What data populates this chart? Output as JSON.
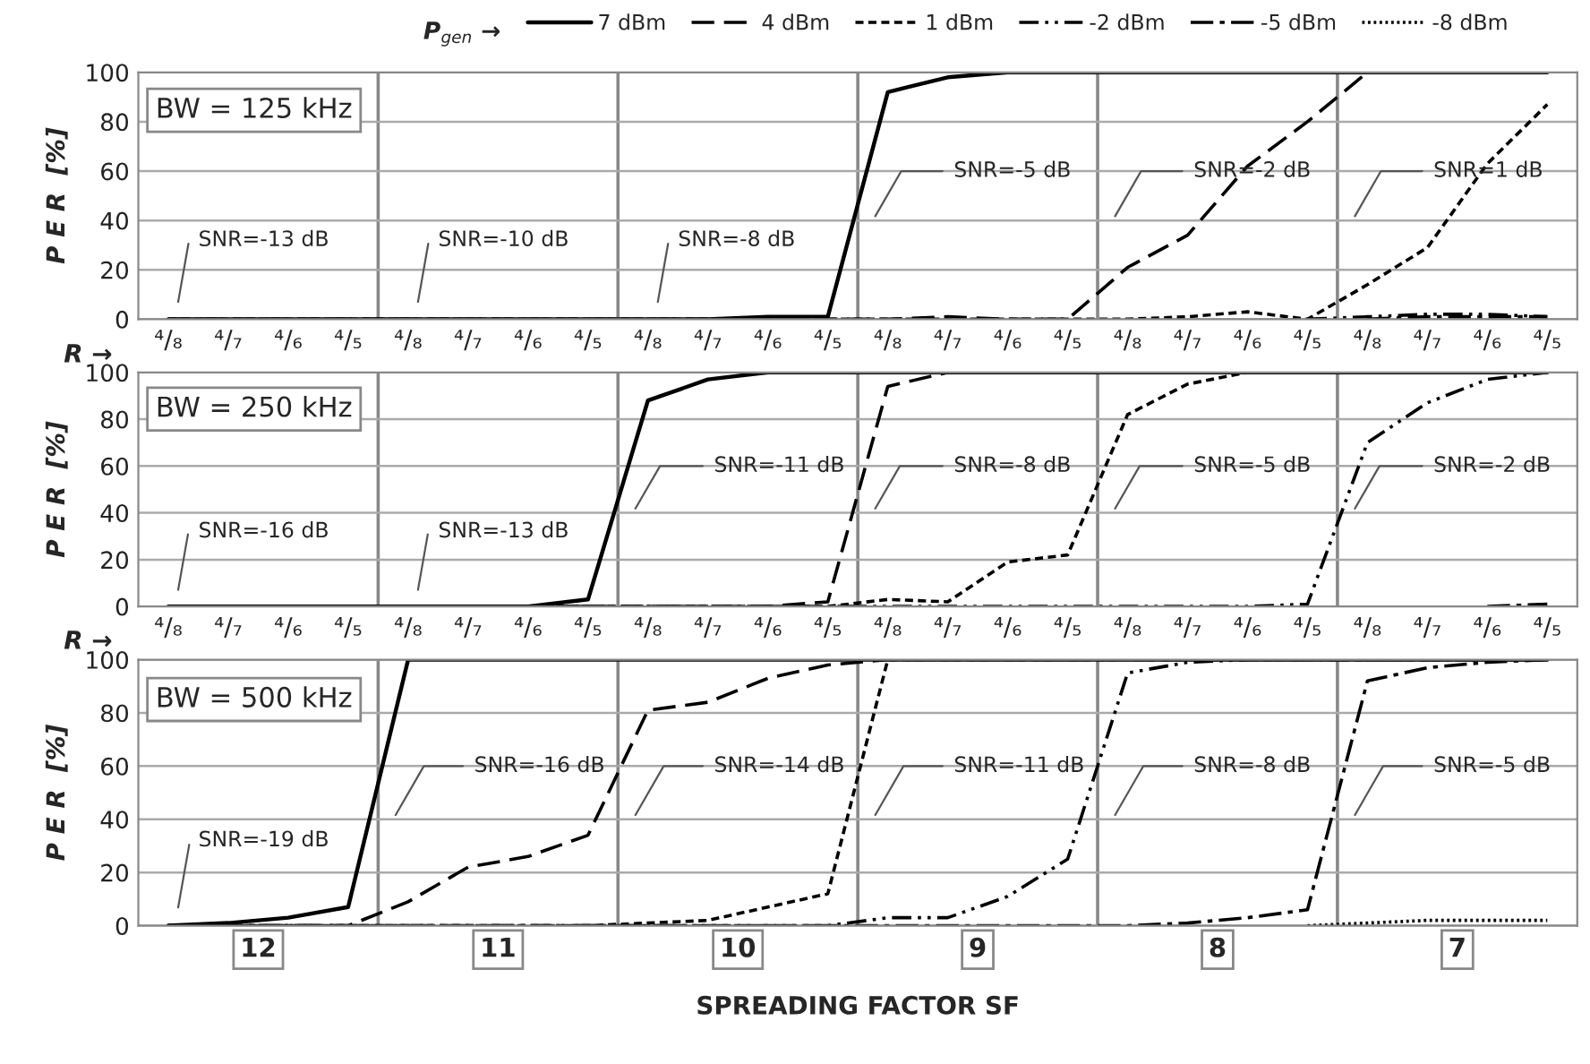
{
  "chart_data": [
    {
      "type": "line",
      "title": "BW = 125 kHz",
      "ylabel": "P E R  [%]",
      "xlabel": "R →",
      "legend_title": "P$_{gen}$ →",
      "legend": "top",
      "grid": "y",
      "marker": "none",
      "ylim": [
        0,
        100
      ],
      "yticks": [
        0,
        20,
        40,
        60,
        80,
        100
      ],
      "categories": [
        "⁴/₈",
        "⁴/₇",
        "⁴/₆",
        "⁴/₅",
        "⁴/₈",
        "⁴/₇",
        "⁴/₆",
        "⁴/₅",
        "⁴/₈",
        "⁴/₇",
        "⁴/₆",
        "⁴/₅",
        "⁴/₈",
        "⁴/₇",
        "⁴/₆",
        "⁴/₅",
        "⁴/₈",
        "⁴/₇",
        "⁴/₆",
        "⁴/₅",
        "⁴/₈",
        "⁴/₇",
        "⁴/₆",
        "⁴/₅"
      ],
      "annotations": [
        "SNR=-13 dB",
        "SNR=-10 dB",
        "SNR=-8 dB",
        "SNR=-5 dB",
        "SNR=-2 dB",
        "SNR=1 dB"
      ],
      "series": [
        {
          "name": "7 dBm",
          "color": "#000000",
          "line_style": "solid",
          "values": [
            0,
            0,
            0,
            0,
            0,
            0,
            0,
            0,
            0,
            0,
            1,
            1,
            92,
            98,
            100,
            100,
            100,
            100,
            100,
            100,
            100,
            100,
            100,
            100
          ]
        },
        {
          "name": "4 dBm",
          "color": "#000000",
          "line_style": "dashed",
          "values": [
            0,
            0,
            0,
            0,
            0,
            0,
            0,
            0,
            0,
            0,
            0,
            0,
            0,
            1,
            0,
            0,
            21,
            34,
            62,
            80,
            100,
            100,
            100,
            100
          ]
        },
        {
          "name": "1 dBm",
          "color": "#000000",
          "line_style": "shortdash",
          "values": [
            0,
            0,
            0,
            0,
            0,
            0,
            0,
            0,
            0,
            0,
            0,
            0,
            0,
            0,
            0,
            0,
            0,
            1,
            3,
            0,
            14,
            29,
            63,
            87
          ]
        },
        {
          "name": "-2 dBm",
          "color": "#000000",
          "line_style": "dashdotdot",
          "values": [
            null,
            null,
            null,
            null,
            null,
            null,
            null,
            null,
            null,
            null,
            null,
            null,
            null,
            null,
            null,
            null,
            null,
            null,
            null,
            0,
            1,
            2,
            2,
            1
          ]
        },
        {
          "name": "-5 dBm",
          "color": "#000000",
          "line_style": "dashdot",
          "values": [
            null,
            null,
            null,
            null,
            null,
            null,
            null,
            null,
            null,
            null,
            null,
            null,
            null,
            null,
            null,
            null,
            null,
            null,
            null,
            null,
            0,
            1,
            1,
            1
          ]
        },
        {
          "name": "-8 dBm",
          "color": "#000000",
          "line_style": "dotted",
          "values": [
            null,
            null,
            null,
            null,
            null,
            null,
            null,
            null,
            null,
            null,
            null,
            null,
            null,
            null,
            null,
            null,
            null,
            null,
            null,
            null,
            null,
            null,
            null,
            null
          ]
        }
      ]
    },
    {
      "type": "line",
      "title": "BW = 250 kHz",
      "ylabel": "P E R  [%]",
      "xlabel": "R →",
      "grid": "y",
      "marker": "none",
      "ylim": [
        0,
        100
      ],
      "yticks": [
        0,
        20,
        40,
        60,
        80,
        100
      ],
      "categories": [
        "⁴/₈",
        "⁴/₇",
        "⁴/₆",
        "⁴/₅",
        "⁴/₈",
        "⁴/₇",
        "⁴/₆",
        "⁴/₅",
        "⁴/₈",
        "⁴/₇",
        "⁴/₆",
        "⁴/₅",
        "⁴/₈",
        "⁴/₇",
        "⁴/₆",
        "⁴/₅",
        "⁴/₈",
        "⁴/₇",
        "⁴/₆",
        "⁴/₅",
        "⁴/₈",
        "⁴/₇",
        "⁴/₆",
        "⁴/₅"
      ],
      "annotations": [
        "SNR=-16 dB",
        "SNR=-13 dB",
        "SNR=-11 dB",
        "SNR=-8 dB",
        "SNR=-5 dB",
        "SNR=-2 dB"
      ],
      "series": [
        {
          "color": "#000000",
          "line_style": "solid",
          "values": [
            0,
            0,
            0,
            0,
            0,
            0,
            0,
            3,
            88,
            97,
            100,
            100,
            100,
            100,
            100,
            100,
            100,
            100,
            100,
            100,
            100,
            100,
            100,
            100
          ]
        },
        {
          "color": "#000000",
          "line_style": "dashed",
          "values": [
            0,
            0,
            0,
            0,
            0,
            0,
            0,
            0,
            0,
            0,
            0,
            2,
            94,
            100,
            100,
            100,
            100,
            100,
            100,
            100,
            100,
            100,
            100,
            100
          ]
        },
        {
          "color": "#000000",
          "line_style": "shortdash",
          "values": [
            0,
            0,
            0,
            0,
            0,
            0,
            0,
            0,
            0,
            0,
            0,
            0,
            3,
            2,
            19,
            22,
            82,
            95,
            100,
            100,
            100,
            100,
            100,
            100
          ]
        },
        {
          "color": "#000000",
          "line_style": "dashdotdot",
          "values": [
            0,
            0,
            0,
            0,
            0,
            0,
            0,
            0,
            0,
            0,
            0,
            0,
            0,
            0,
            0,
            0,
            0,
            0,
            0,
            1,
            70,
            87,
            97,
            100
          ]
        },
        {
          "color": "#000000",
          "line_style": "dashdot",
          "values": [
            null,
            null,
            null,
            null,
            null,
            null,
            null,
            null,
            null,
            null,
            null,
            null,
            null,
            null,
            null,
            null,
            null,
            null,
            null,
            null,
            null,
            null,
            0,
            1
          ]
        },
        {
          "color": "#000000",
          "line_style": "dotted",
          "values": [
            null,
            null,
            null,
            null,
            null,
            null,
            null,
            null,
            null,
            null,
            null,
            null,
            null,
            null,
            null,
            null,
            null,
            null,
            null,
            null,
            null,
            null,
            null,
            null
          ]
        }
      ]
    },
    {
      "type": "line",
      "title": "BW = 500 kHz",
      "ylabel": "P E R  [%]",
      "xlabel": "SPREADING FACTOR SF",
      "grid": "y",
      "marker": "none",
      "ylim": [
        0,
        100
      ],
      "yticks": [
        0,
        20,
        40,
        60,
        80,
        100
      ],
      "categories": [
        null,
        null,
        null,
        null,
        null,
        null,
        null,
        null,
        null,
        null,
        null,
        null,
        null,
        null,
        null,
        null,
        null,
        null,
        null,
        null,
        null,
        null,
        null,
        null
      ],
      "annotations": [
        "SNR=-19 dB",
        "SNR=-16 dB",
        "SNR=-14 dB",
        "SNR=-11 dB",
        "SNR=-8 dB",
        "SNR=-5 dB",
        "12",
        "11",
        "10",
        "9",
        "8",
        "7"
      ],
      "series": [
        {
          "color": "#000000",
          "line_style": "solid",
          "values": [
            0,
            1,
            3,
            7,
            100,
            100,
            100,
            100,
            100,
            100,
            100,
            100,
            100,
            100,
            100,
            100,
            100,
            100,
            100,
            100,
            100,
            100,
            100,
            100
          ]
        },
        {
          "color": "#000000",
          "line_style": "dashed",
          "values": [
            0,
            0,
            0,
            0,
            9,
            22,
            26,
            34,
            81,
            84,
            93,
            98,
            100,
            100,
            100,
            100,
            100,
            100,
            100,
            100,
            100,
            100,
            100,
            100
          ]
        },
        {
          "color": "#000000",
          "line_style": "shortdash",
          "values": [
            0,
            0,
            0,
            0,
            0,
            0,
            0,
            0,
            1,
            2,
            7,
            12,
            100,
            100,
            100,
            100,
            100,
            100,
            100,
            100,
            100,
            100,
            100,
            100
          ]
        },
        {
          "color": "#000000",
          "line_style": "dashdotdot",
          "values": [
            0,
            0,
            0,
            0,
            0,
            0,
            0,
            0,
            0,
            0,
            0,
            0,
            3,
            3,
            11,
            25,
            95,
            99,
            100,
            100,
            100,
            100,
            100,
            100
          ]
        },
        {
          "color": "#000000",
          "line_style": "dashdot",
          "values": [
            0,
            0,
            0,
            0,
            0,
            0,
            0,
            0,
            0,
            0,
            0,
            0,
            0,
            0,
            0,
            0,
            0,
            1,
            3,
            6,
            92,
            97,
            99,
            100
          ]
        },
        {
          "color": "#000000",
          "line_style": "dotted",
          "values": [
            null,
            null,
            null,
            null,
            null,
            null,
            null,
            null,
            null,
            null,
            null,
            null,
            null,
            null,
            null,
            null,
            null,
            null,
            null,
            0,
            1,
            2,
            2,
            2
          ]
        }
      ]
    }
  ]
}
